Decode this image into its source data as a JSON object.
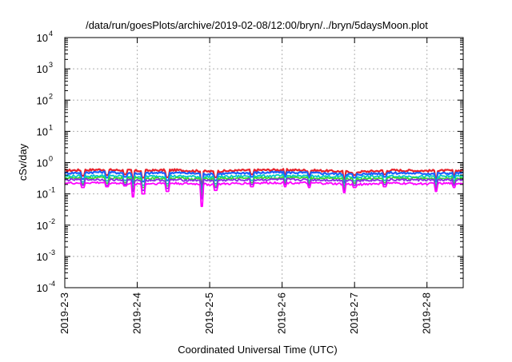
{
  "chart_data": {
    "type": "line",
    "title": "/data/run/goesPlots/archive/2019-02-08/12:00/bryn/../bryn/5daysMoon.plot",
    "xlabel": "Coordinated Universal Time (UTC)",
    "ylabel": "cSv/day",
    "y_scale": "log",
    "ylim": [
      0.0001,
      10000
    ],
    "y_ticks": [
      {
        "value": 0.0001,
        "base": "10",
        "exp": "-4"
      },
      {
        "value": 0.001,
        "base": "10",
        "exp": "-3"
      },
      {
        "value": 0.01,
        "base": "10",
        "exp": "-2"
      },
      {
        "value": 0.1,
        "base": "10",
        "exp": "-1"
      },
      {
        "value": 1,
        "base": "10",
        "exp": "0"
      },
      {
        "value": 10,
        "base": "10",
        "exp": "1"
      },
      {
        "value": 100,
        "base": "10",
        "exp": "2"
      },
      {
        "value": 1000,
        "base": "10",
        "exp": "3"
      },
      {
        "value": 10000,
        "base": "10",
        "exp": "4"
      }
    ],
    "xlim": [
      "2019-02-03T00:00",
      "2019-02-08T12:00"
    ],
    "x_ticks": [
      "2019-2-3",
      "2019-2-4",
      "2019-2-5",
      "2019-2-6",
      "2019-2-7",
      "2019-2-8"
    ],
    "grid": true,
    "legend": "none",
    "series": [
      {
        "color": "#e8202a",
        "level": 0.56,
        "x": [
          "2019-02-03T00:00",
          "2019-02-03T12:00",
          "2019-02-04T00:00",
          "2019-02-04T12:00",
          "2019-02-05T00:00",
          "2019-02-05T12:00",
          "2019-02-06T00:00",
          "2019-02-06T12:00",
          "2019-02-07T00:00",
          "2019-02-07T12:00",
          "2019-02-08T00:00",
          "2019-02-08T12:00"
        ],
        "values": [
          0.56,
          0.6,
          0.55,
          0.58,
          0.52,
          0.57,
          0.59,
          0.56,
          0.5,
          0.57,
          0.55,
          0.56
        ]
      },
      {
        "color": "#1e5fff",
        "level": 0.46,
        "x": [
          "2019-02-03T00:00",
          "2019-02-03T12:00",
          "2019-02-04T00:00",
          "2019-02-04T12:00",
          "2019-02-05T00:00",
          "2019-02-05T12:00",
          "2019-02-06T00:00",
          "2019-02-06T12:00",
          "2019-02-07T00:00",
          "2019-02-07T12:00",
          "2019-02-08T00:00",
          "2019-02-08T12:00"
        ],
        "values": [
          0.46,
          0.5,
          0.45,
          0.48,
          0.43,
          0.47,
          0.49,
          0.46,
          0.42,
          0.47,
          0.45,
          0.46
        ]
      },
      {
        "color": "#00c8c8",
        "level": 0.37,
        "x": [
          "2019-02-03T00:00",
          "2019-02-03T12:00",
          "2019-02-04T00:00",
          "2019-02-04T12:00",
          "2019-02-05T00:00",
          "2019-02-05T12:00",
          "2019-02-06T00:00",
          "2019-02-06T12:00",
          "2019-02-07T00:00",
          "2019-02-07T12:00",
          "2019-02-08T00:00",
          "2019-02-08T12:00"
        ],
        "values": [
          0.37,
          0.38,
          0.36,
          0.37,
          0.35,
          0.37,
          0.38,
          0.37,
          0.35,
          0.37,
          0.36,
          0.37
        ]
      },
      {
        "color": "#38d838",
        "level": 0.32,
        "x": [
          "2019-02-03T00:00",
          "2019-02-03T12:00",
          "2019-02-04T00:00",
          "2019-02-04T12:00",
          "2019-02-05T00:00",
          "2019-02-05T12:00",
          "2019-02-06T00:00",
          "2019-02-06T12:00",
          "2019-02-07T00:00",
          "2019-02-07T12:00",
          "2019-02-08T00:00",
          "2019-02-08T12:00"
        ],
        "values": [
          0.32,
          0.33,
          0.31,
          0.32,
          0.3,
          0.32,
          0.33,
          0.32,
          0.3,
          0.32,
          0.31,
          0.32
        ]
      },
      {
        "color": "#8a2be2",
        "level": 0.28,
        "x": [
          "2019-02-03T00:00",
          "2019-02-03T12:00",
          "2019-02-04T00:00",
          "2019-02-04T12:00",
          "2019-02-05T00:00",
          "2019-02-05T12:00",
          "2019-02-06T00:00",
          "2019-02-06T12:00",
          "2019-02-07T00:00",
          "2019-02-07T12:00",
          "2019-02-08T00:00",
          "2019-02-08T12:00"
        ],
        "values": [
          0.28,
          0.29,
          0.27,
          0.28,
          0.27,
          0.28,
          0.29,
          0.28,
          0.27,
          0.28,
          0.28,
          0.28
        ]
      },
      {
        "color": "#ff00ff",
        "level": 0.22,
        "x": [
          "2019-02-03T00:00",
          "2019-02-03T12:00",
          "2019-02-04T00:00",
          "2019-02-04T12:00",
          "2019-02-05T00:00",
          "2019-02-05T12:00",
          "2019-02-06T00:00",
          "2019-02-06T12:00",
          "2019-02-07T00:00",
          "2019-02-07T12:00",
          "2019-02-08T00:00",
          "2019-02-08T12:00"
        ],
        "values": [
          0.22,
          0.23,
          0.21,
          0.22,
          0.2,
          0.22,
          0.23,
          0.22,
          0.2,
          0.22,
          0.21,
          0.22
        ]
      }
    ],
    "dips": [
      {
        "x": "2019-02-03T06:00",
        "values": [
          0.38,
          0.3,
          0.24,
          0.21,
          0.19,
          0.16
        ]
      },
      {
        "x": "2019-02-03T14:00",
        "values": [
          0.4,
          0.33,
          0.26,
          0.22,
          0.19,
          0.17
        ]
      },
      {
        "x": "2019-02-03T20:00",
        "values": [
          0.42,
          0.35,
          0.27,
          0.23,
          0.2,
          0.18
        ]
      },
      {
        "x": "2019-02-03T22:30",
        "values": [
          0.3,
          0.22,
          0.17,
          0.14,
          0.12,
          0.08
        ]
      },
      {
        "x": "2019-02-04T02:00",
        "values": [
          0.33,
          0.25,
          0.19,
          0.16,
          0.13,
          0.1
        ]
      },
      {
        "x": "2019-02-04T10:00",
        "values": [
          0.34,
          0.27,
          0.21,
          0.18,
          0.15,
          0.12
        ]
      },
      {
        "x": "2019-02-04T21:30",
        "values": [
          0.2,
          0.14,
          0.11,
          0.09,
          0.07,
          0.04
        ]
      },
      {
        "x": "2019-02-05T02:00",
        "values": [
          0.34,
          0.27,
          0.21,
          0.18,
          0.16,
          0.13
        ]
      },
      {
        "x": "2019-02-05T14:00",
        "values": [
          0.42,
          0.35,
          0.27,
          0.23,
          0.2,
          0.17
        ]
      },
      {
        "x": "2019-02-06T01:00",
        "values": [
          0.42,
          0.35,
          0.27,
          0.23,
          0.2,
          0.17
        ]
      },
      {
        "x": "2019-02-06T09:00",
        "values": [
          0.4,
          0.33,
          0.26,
          0.22,
          0.19,
          0.16
        ]
      },
      {
        "x": "2019-02-06T20:30",
        "values": [
          0.3,
          0.23,
          0.18,
          0.15,
          0.13,
          0.11
        ]
      },
      {
        "x": "2019-02-07T00:00",
        "values": [
          0.4,
          0.33,
          0.26,
          0.22,
          0.19,
          0.16
        ]
      },
      {
        "x": "2019-02-07T10:00",
        "values": [
          0.42,
          0.35,
          0.27,
          0.23,
          0.2,
          0.17
        ]
      },
      {
        "x": "2019-02-08T03:00",
        "values": [
          0.32,
          0.25,
          0.19,
          0.16,
          0.14,
          0.12
        ]
      },
      {
        "x": "2019-02-08T09:00",
        "values": [
          0.4,
          0.33,
          0.26,
          0.22,
          0.19,
          0.16
        ]
      }
    ]
  }
}
